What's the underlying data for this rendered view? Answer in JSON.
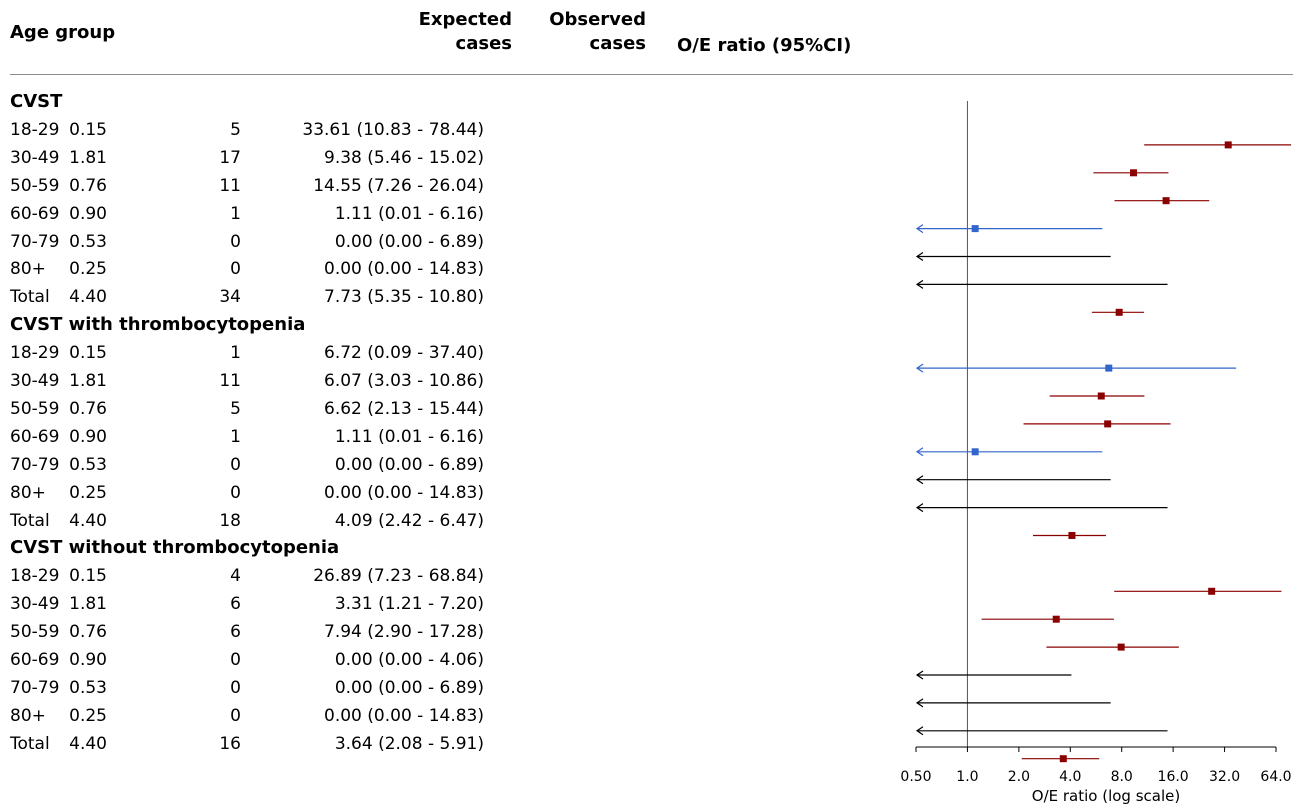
{
  "headers": {
    "age_group": "Age group",
    "expected_line1": "Expected",
    "expected_line2": "cases",
    "observed_line1": "Observed",
    "observed_line2": "cases",
    "oe_ratio": "O/E ratio (95%CI)"
  },
  "colors": {
    "significant": "#8b0000",
    "nonsignificant": "#3366cc",
    "zero": "#000000",
    "reference_line": "#555555"
  },
  "rows": [
    {
      "type": "group",
      "label": "CVST"
    },
    {
      "type": "data",
      "age": "18-29",
      "expected": "0.15",
      "observed": "5",
      "ratio": "33.61 (10.83 - 78.44)"
    },
    {
      "type": "data",
      "age": "30-49",
      "expected": "1.81",
      "observed": "17",
      "ratio": "9.38 (5.46 - 15.02)"
    },
    {
      "type": "data",
      "age": "50-59",
      "expected": "0.76",
      "observed": "11",
      "ratio": "14.55 (7.26 - 26.04)"
    },
    {
      "type": "data",
      "age": "60-69",
      "expected": "0.90",
      "observed": "1",
      "ratio": "1.11 (0.01 - 6.16)"
    },
    {
      "type": "data",
      "age": "70-79",
      "expected": "0.53",
      "observed": "0",
      "ratio": "0.00 (0.00 - 6.89)"
    },
    {
      "type": "data",
      "age": "80+",
      "expected": "0.25",
      "observed": "0",
      "ratio": "0.00 (0.00 - 14.83)"
    },
    {
      "type": "data",
      "age": "Total",
      "expected": "4.40",
      "observed": "34",
      "ratio": "7.73 (5.35 - 10.80)"
    },
    {
      "type": "group",
      "label": "CVST with thrombocytopenia"
    },
    {
      "type": "data",
      "age": "18-29",
      "expected": "0.15",
      "observed": "1",
      "ratio": "6.72 (0.09 - 37.40)"
    },
    {
      "type": "data",
      "age": "30-49",
      "expected": "1.81",
      "observed": "11",
      "ratio": "6.07 (3.03 - 10.86)"
    },
    {
      "type": "data",
      "age": "50-59",
      "expected": "0.76",
      "observed": "5",
      "ratio": "6.62 (2.13 - 15.44)"
    },
    {
      "type": "data",
      "age": "60-69",
      "expected": "0.90",
      "observed": "1",
      "ratio": "1.11 (0.01 - 6.16)"
    },
    {
      "type": "data",
      "age": "70-79",
      "expected": "0.53",
      "observed": "0",
      "ratio": "0.00 (0.00 - 6.89)"
    },
    {
      "type": "data",
      "age": "80+",
      "expected": "0.25",
      "observed": "0",
      "ratio": "0.00 (0.00 - 14.83)"
    },
    {
      "type": "data",
      "age": "Total",
      "expected": "4.40",
      "observed": "18",
      "ratio": "4.09 (2.42 - 6.47)"
    },
    {
      "type": "group",
      "label": "CVST without thrombocytopenia"
    },
    {
      "type": "data",
      "age": "18-29",
      "expected": "0.15",
      "observed": "4",
      "ratio": "26.89 (7.23 - 68.84)"
    },
    {
      "type": "data",
      "age": "30-49",
      "expected": "1.81",
      "observed": "6",
      "ratio": "3.31 (1.21 - 7.20)"
    },
    {
      "type": "data",
      "age": "50-59",
      "expected": "0.76",
      "observed": "6",
      "ratio": "7.94 (2.90 - 17.28)"
    },
    {
      "type": "data",
      "age": "60-69",
      "expected": "0.90",
      "observed": "0",
      "ratio": "0.00 (0.00 - 4.06)"
    },
    {
      "type": "data",
      "age": "70-79",
      "expected": "0.53",
      "observed": "0",
      "ratio": "0.00 (0.00 - 6.89)"
    },
    {
      "type": "data",
      "age": "80+",
      "expected": "0.25",
      "observed": "0",
      "ratio": "0.00 (0.00 - 14.83)"
    },
    {
      "type": "data",
      "age": "Total",
      "expected": "4.40",
      "observed": "16",
      "ratio": "3.64 (2.08 - 5.91)"
    }
  ],
  "chart_data": {
    "type": "forest",
    "xlabel": "O/E ratio (log scale)",
    "x_scale": "log2",
    "xlim": [
      0.5,
      64
    ],
    "x_ticks": [
      {
        "value": 0.5,
        "label": "0.50"
      },
      {
        "value": 1,
        "label": "1.0"
      },
      {
        "value": 2,
        "label": "2.0"
      },
      {
        "value": 4,
        "label": "4.0"
      },
      {
        "value": 8,
        "label": "8.0"
      },
      {
        "value": 16,
        "label": "16.0"
      },
      {
        "value": 32,
        "label": "32.0"
      },
      {
        "value": 64,
        "label": "64.0"
      }
    ],
    "reference_value": 1,
    "points": [
      {
        "row": 1,
        "estimate": 33.61,
        "lower": 10.83,
        "upper": 78.44,
        "status": "significant"
      },
      {
        "row": 2,
        "estimate": 9.38,
        "lower": 5.46,
        "upper": 15.02,
        "status": "significant"
      },
      {
        "row": 3,
        "estimate": 14.55,
        "lower": 7.26,
        "upper": 26.04,
        "status": "significant"
      },
      {
        "row": 4,
        "estimate": 1.11,
        "lower": 0.01,
        "upper": 6.16,
        "status": "nonsignificant"
      },
      {
        "row": 5,
        "estimate": 0.0,
        "lower": 0.0,
        "upper": 6.89,
        "status": "zero"
      },
      {
        "row": 6,
        "estimate": 0.0,
        "lower": 0.0,
        "upper": 14.83,
        "status": "zero"
      },
      {
        "row": 7,
        "estimate": 7.73,
        "lower": 5.35,
        "upper": 10.8,
        "status": "significant"
      },
      {
        "row": 9,
        "estimate": 6.72,
        "lower": 0.09,
        "upper": 37.4,
        "status": "nonsignificant"
      },
      {
        "row": 10,
        "estimate": 6.07,
        "lower": 3.03,
        "upper": 10.86,
        "status": "significant"
      },
      {
        "row": 11,
        "estimate": 6.62,
        "lower": 2.13,
        "upper": 15.44,
        "status": "significant"
      },
      {
        "row": 12,
        "estimate": 1.11,
        "lower": 0.01,
        "upper": 6.16,
        "status": "nonsignificant"
      },
      {
        "row": 13,
        "estimate": 0.0,
        "lower": 0.0,
        "upper": 6.89,
        "status": "zero"
      },
      {
        "row": 14,
        "estimate": 0.0,
        "lower": 0.0,
        "upper": 14.83,
        "status": "zero"
      },
      {
        "row": 15,
        "estimate": 4.09,
        "lower": 2.42,
        "upper": 6.47,
        "status": "significant"
      },
      {
        "row": 17,
        "estimate": 26.89,
        "lower": 7.23,
        "upper": 68.84,
        "status": "significant"
      },
      {
        "row": 18,
        "estimate": 3.31,
        "lower": 1.21,
        "upper": 7.2,
        "status": "significant"
      },
      {
        "row": 19,
        "estimate": 7.94,
        "lower": 2.9,
        "upper": 17.28,
        "status": "significant"
      },
      {
        "row": 20,
        "estimate": 0.0,
        "lower": 0.0,
        "upper": 4.06,
        "status": "zero"
      },
      {
        "row": 21,
        "estimate": 0.0,
        "lower": 0.0,
        "upper": 6.89,
        "status": "zero"
      },
      {
        "row": 22,
        "estimate": 0.0,
        "lower": 0.0,
        "upper": 14.83,
        "status": "zero"
      },
      {
        "row": 23,
        "estimate": 3.64,
        "lower": 2.08,
        "upper": 5.91,
        "status": "significant"
      }
    ]
  }
}
